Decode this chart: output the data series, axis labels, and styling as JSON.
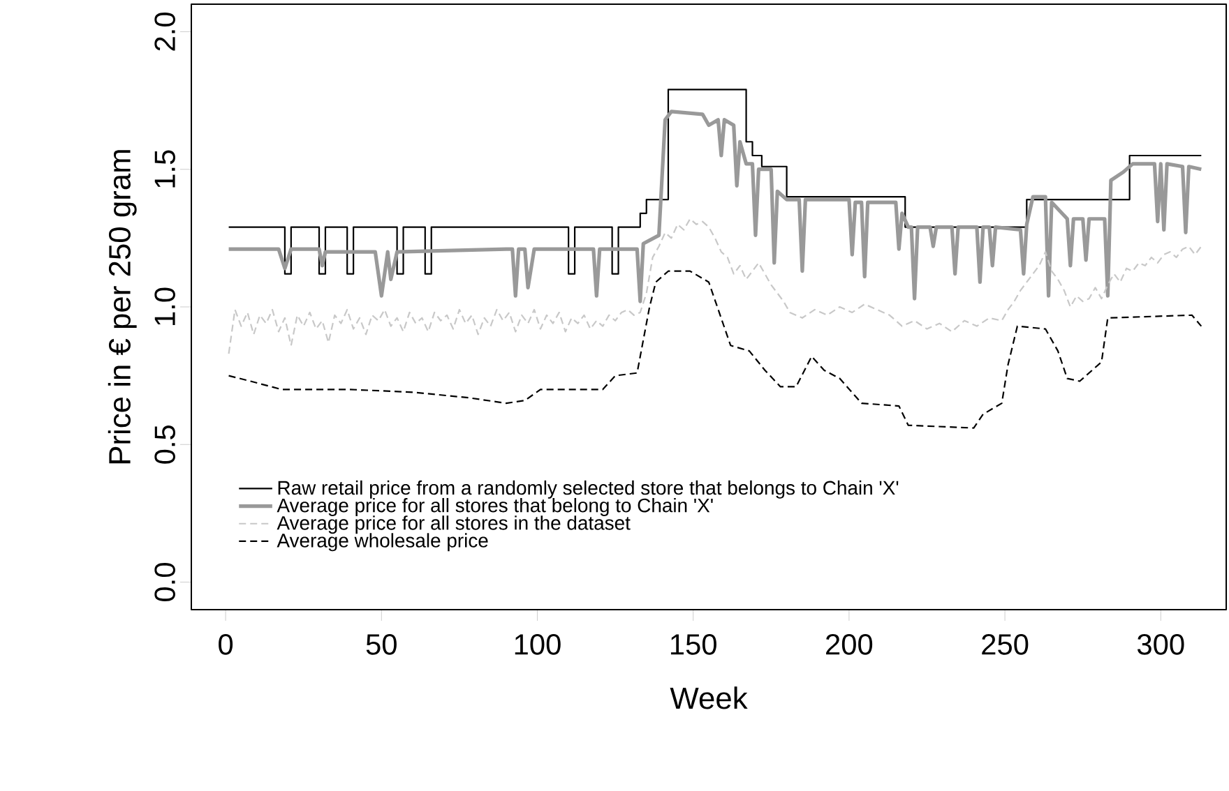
{
  "chart_data": {
    "type": "line",
    "xlabel": "Week",
    "ylabel": "Price in € per 250 gram",
    "xlim": [
      -11,
      321
    ],
    "ylim": [
      -0.1,
      2.1
    ],
    "xticks": [
      0,
      50,
      100,
      150,
      200,
      250,
      300
    ],
    "yticks": [
      {
        "value": 0,
        "label": "0.0"
      },
      0.5,
      {
        "value": 1,
        "label": "1.0"
      },
      1.5,
      {
        "value": 2,
        "label": "2.0"
      }
    ],
    "grid": false,
    "legend": "bottom left",
    "series": [
      {
        "name": "Raw retail price from a randomly selected store that belongs to Chain 'X'",
        "type": "step",
        "color": "#000000",
        "line_style": "solid",
        "x": [
          1,
          19,
          21,
          30,
          32,
          39,
          41,
          55,
          57,
          64,
          66,
          110,
          112,
          124,
          126,
          133,
          135,
          142,
          167,
          169,
          172,
          180,
          218,
          257,
          290,
          313
        ],
        "values": [
          1.29,
          1.12,
          1.29,
          1.12,
          1.29,
          1.12,
          1.29,
          1.12,
          1.29,
          1.12,
          1.29,
          1.12,
          1.29,
          1.12,
          1.29,
          1.34,
          1.39,
          1.79,
          1.6,
          1.55,
          1.51,
          1.4,
          1.29,
          1.39,
          1.55,
          1.55
        ]
      },
      {
        "name": "Average price for all stores that belong to Chain 'X'",
        "color": "#999999",
        "line_style": "solid",
        "x": [
          1,
          17,
          19,
          21,
          30,
          31,
          32,
          48,
          50,
          52,
          53,
          55,
          90,
          92,
          93,
          94,
          96,
          97,
          99,
          118,
          119,
          120,
          132,
          133,
          134,
          139,
          141,
          143,
          153,
          155,
          158,
          159,
          160,
          163,
          164,
          165,
          167,
          169,
          170,
          171,
          175,
          176,
          177,
          180,
          184,
          185,
          186,
          200,
          201,
          202,
          204,
          205,
          206,
          215,
          216,
          217,
          219,
          220,
          221,
          222,
          226,
          227,
          228,
          233,
          234,
          235,
          241,
          242,
          243,
          245,
          246,
          247,
          255,
          256,
          257,
          259,
          263,
          264,
          265,
          270,
          271,
          272,
          275,
          276,
          277,
          282,
          283,
          284,
          288,
          291,
          298,
          299,
          300,
          301,
          302,
          307,
          308,
          309,
          313
        ],
        "values": [
          1.21,
          1.21,
          1.14,
          1.21,
          1.21,
          1.15,
          1.2,
          1.2,
          1.04,
          1.2,
          1.1,
          1.2,
          1.21,
          1.21,
          1.04,
          1.21,
          1.21,
          1.07,
          1.21,
          1.21,
          1.04,
          1.21,
          1.21,
          1.02,
          1.23,
          1.26,
          1.68,
          1.71,
          1.7,
          1.66,
          1.68,
          1.55,
          1.68,
          1.66,
          1.44,
          1.6,
          1.52,
          1.52,
          1.26,
          1.5,
          1.5,
          1.16,
          1.42,
          1.39,
          1.39,
          1.13,
          1.39,
          1.39,
          1.19,
          1.38,
          1.38,
          1.11,
          1.38,
          1.38,
          1.21,
          1.34,
          1.29,
          1.29,
          1.03,
          1.29,
          1.29,
          1.22,
          1.29,
          1.29,
          1.12,
          1.29,
          1.29,
          1.09,
          1.29,
          1.29,
          1.15,
          1.29,
          1.28,
          1.12,
          1.3,
          1.4,
          1.4,
          1.04,
          1.38,
          1.32,
          1.15,
          1.32,
          1.32,
          1.17,
          1.32,
          1.32,
          1.04,
          1.46,
          1.49,
          1.52,
          1.52,
          1.31,
          1.52,
          1.28,
          1.52,
          1.51,
          1.27,
          1.51,
          1.5
        ]
      },
      {
        "name": "Average price for all stores in the dataset",
        "color": "#c8c8c8",
        "line_style": "dashed",
        "x": [
          1,
          3,
          5,
          7,
          9,
          11,
          13,
          15,
          17,
          19,
          21,
          23,
          25,
          27,
          29,
          31,
          33,
          35,
          37,
          39,
          41,
          43,
          45,
          47,
          49,
          51,
          53,
          55,
          57,
          59,
          61,
          63,
          65,
          67,
          69,
          71,
          73,
          75,
          77,
          79,
          81,
          83,
          85,
          87,
          89,
          91,
          93,
          95,
          97,
          99,
          101,
          103,
          105,
          107,
          109,
          111,
          113,
          115,
          117,
          119,
          121,
          123,
          125,
          127,
          129,
          131,
          133,
          135,
          137,
          139,
          141,
          143,
          145,
          147,
          149,
          151,
          153,
          155,
          157,
          159,
          161,
          163,
          165,
          167,
          169,
          171,
          173,
          175,
          177,
          179,
          181,
          185,
          189,
          193,
          197,
          201,
          205,
          209,
          213,
          217,
          221,
          225,
          229,
          233,
          237,
          241,
          245,
          249,
          251,
          253,
          255,
          257,
          259,
          261,
          263,
          265,
          267,
          269,
          271,
          273,
          275,
          277,
          279,
          281,
          283,
          285,
          287,
          289,
          291,
          293,
          295,
          297,
          299,
          301,
          303,
          305,
          307,
          309,
          311,
          313
        ],
        "values": [
          0.83,
          0.99,
          0.93,
          0.98,
          0.9,
          0.97,
          0.94,
          0.99,
          0.91,
          0.96,
          0.86,
          0.97,
          0.93,
          0.98,
          0.92,
          0.95,
          0.87,
          0.97,
          0.94,
          0.99,
          0.92,
          0.96,
          0.9,
          0.97,
          0.95,
          0.99,
          0.93,
          0.96,
          0.91,
          0.98,
          0.94,
          0.96,
          0.91,
          0.98,
          0.95,
          0.97,
          0.92,
          0.99,
          0.94,
          0.97,
          0.9,
          0.96,
          0.93,
          0.99,
          0.95,
          0.98,
          0.91,
          0.97,
          0.94,
          0.99,
          0.92,
          0.97,
          0.94,
          0.98,
          0.91,
          0.96,
          0.94,
          0.97,
          0.92,
          0.95,
          0.93,
          0.97,
          0.95,
          0.98,
          0.99,
          0.97,
          0.98,
          1.05,
          1.18,
          1.22,
          1.27,
          1.25,
          1.3,
          1.28,
          1.32,
          1.3,
          1.31,
          1.29,
          1.25,
          1.2,
          1.18,
          1.12,
          1.15,
          1.1,
          1.13,
          1.16,
          1.12,
          1.08,
          1.05,
          1.02,
          0.98,
          0.96,
          0.99,
          0.97,
          1.0,
          0.98,
          1.01,
          0.99,
          0.97,
          0.93,
          0.95,
          0.92,
          0.94,
          0.91,
          0.95,
          0.93,
          0.96,
          0.95,
          0.99,
          1.02,
          1.06,
          1.09,
          1.12,
          1.15,
          1.2,
          1.13,
          1.1,
          1.06,
          1.0,
          1.04,
          1.02,
          1.03,
          1.07,
          1.03,
          1.08,
          1.12,
          1.09,
          1.14,
          1.13,
          1.16,
          1.15,
          1.18,
          1.16,
          1.19,
          1.2,
          1.18,
          1.21,
          1.22,
          1.19,
          1.22
        ]
      },
      {
        "name": "Average wholesale price",
        "color": "#000000",
        "line_style": "dashed",
        "x": [
          1,
          8,
          18,
          40,
          60,
          78,
          90,
          96,
          101,
          121,
          125,
          132,
          136,
          138,
          142,
          149,
          155,
          162,
          168,
          173,
          178,
          183,
          188,
          192,
          197,
          204,
          216,
          219,
          240,
          243,
          249,
          251,
          254,
          263,
          267,
          270,
          274,
          281,
          283,
          310,
          313
        ],
        "values": [
          0.75,
          0.73,
          0.7,
          0.7,
          0.69,
          0.67,
          0.65,
          0.66,
          0.7,
          0.7,
          0.75,
          0.76,
          1.0,
          1.09,
          1.13,
          1.13,
          1.09,
          0.86,
          0.84,
          0.77,
          0.71,
          0.71,
          0.82,
          0.77,
          0.74,
          0.65,
          0.64,
          0.57,
          0.56,
          0.61,
          0.65,
          0.79,
          0.93,
          0.92,
          0.84,
          0.74,
          0.73,
          0.8,
          0.96,
          0.97,
          0.93
        ]
      }
    ]
  }
}
